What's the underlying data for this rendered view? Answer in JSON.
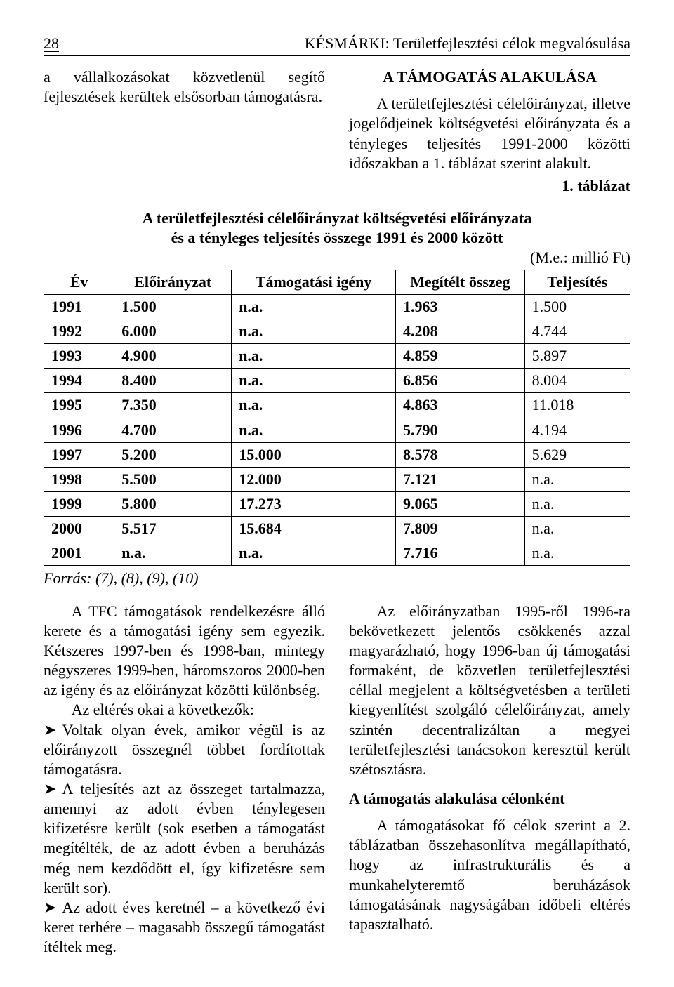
{
  "header": {
    "page_number": "28",
    "running_title": "KÉSMÁRKI: Területfejlesztési célok megvalósulása"
  },
  "intro_left": "a vállalkozásokat közvetlenül segítő fejlesztések kerültek elsősorban támogatásra.",
  "intro_right_title": "A TÁMOGATÁS ALAKULÁSA",
  "intro_right": "A területfejlesztési célelőirányzat, illetve jogelődjeinek költségvetési előirányzata és a tényleges teljesítés 1991-2000 közötti időszakban a 1. táblázat szerint alakult.",
  "table": {
    "label": "1. táblázat",
    "caption_line1": "A területfejlesztési célelőirányzat költségvetési előirányzata",
    "caption_line2": "és a tényleges teljesítés összege 1991 és 2000 között",
    "unit": "(M.e.: millió Ft)",
    "columns": [
      "Év",
      "Előirányzat",
      "Támogatási igény",
      "Megítélt összeg",
      "Teljesítés"
    ],
    "col_widths": [
      "12%",
      "20%",
      "28%",
      "22%",
      "18%"
    ],
    "rows": [
      [
        "1991",
        "1.500",
        "n.a.",
        "1.963",
        "1.500"
      ],
      [
        "1992",
        "6.000",
        "n.a.",
        "4.208",
        "4.744"
      ],
      [
        "1993",
        "4.900",
        "n.a.",
        "4.859",
        "5.897"
      ],
      [
        "1994",
        "8.400",
        "n.a.",
        "6.856",
        "8.004"
      ],
      [
        "1995",
        "7.350",
        "n.a.",
        "4.863",
        "11.018"
      ],
      [
        "1996",
        "4.700",
        "n.a.",
        "5.790",
        "4.194"
      ],
      [
        "1997",
        "5.200",
        "15.000",
        "8.578",
        "5.629"
      ],
      [
        "1998",
        "5.500",
        "12.000",
        "7.121",
        "n.a."
      ],
      [
        "1999",
        "5.800",
        "17.273",
        "9.065",
        "n.a."
      ],
      [
        "2000",
        "5.517",
        "15.684",
        "7.809",
        "n.a."
      ],
      [
        "2001",
        "n.a.",
        "n.a.",
        "7.716",
        "n.a."
      ]
    ],
    "source": "Forrás: (7), (8), (9), (10)"
  },
  "body_left": {
    "p1": "A TFC támogatások rendelkezésre álló kerete és a támogatási igény sem egyezik. Kétszeres 1997-ben és 1998-ban, mintegy négyszeres 1999-ben, háromszoros 2000-ben az igény és az előirányzat közötti különbség.",
    "p2": "Az eltérés okai a következők:",
    "b1": "Voltak olyan évek, amikor végül is az előirányzott összegnél többet fordítottak támogatásra.",
    "b2": "A teljesítés azt az összeget tartalmazza, amennyi az adott évben ténylegesen kifizetésre került (sok esetben a támogatást megítélték, de az adott évben a beruházás még nem kezdődött el, így kifizetésre sem került sor).",
    "b3": "Az adott éves keretnél – a következő évi keret terhére – magasabb összegű támogatást ítéltek meg."
  },
  "body_right": {
    "p1": "Az előirányzatban 1995-ről 1996-ra bekövetkezett jelentős csökkenés azzal magyarázható, hogy 1996-ban új támogatási formaként, de közvetlen területfejlesztési céllal megjelent a költségvetésben a területi kiegyenlítést szolgáló célelőirányzat, amely szintén decentralizáltan a megyei területfejlesztési tanácsokon keresztül került szétosztásra.",
    "h1": "A támogatás alakulása célonként",
    "p2": "A támogatásokat fő célok szerint a 2. táblázatban összehasonlítva megállapítható, hogy az infrastrukturális és a munkahelyteremtő beruházások támogatásának nagyságában időbeli eltérés tapasztalható."
  },
  "bullet_glyph": "➤"
}
